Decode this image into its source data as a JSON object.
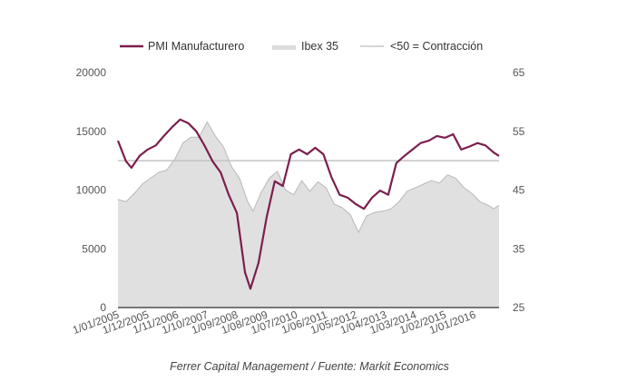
{
  "chart_data": {
    "type": "line",
    "title": "",
    "source": "Ferrer Capital Management / Fuente: Markit Economics",
    "legend": {
      "placement": "top",
      "entries": [
        "PMI Manufacturero",
        "Ibex 35",
        "<50 = Contracción"
      ]
    },
    "left_axis": {
      "ylim": [
        0,
        20000
      ],
      "ticks": [
        "20000",
        "15000",
        "10000",
        "5000",
        "0"
      ],
      "tick_values": [
        20000,
        15000,
        10000,
        5000,
        0
      ]
    },
    "right_axis": {
      "ylim": [
        25,
        65
      ],
      "ticks": [
        "65",
        "55",
        "45",
        "35",
        "25"
      ],
      "tick_values": [
        65,
        55,
        45,
        35,
        25
      ]
    },
    "x_tick_labels": [
      "1/01/2005",
      "1/12/2005",
      "1/11/2006",
      "1/10/2007",
      "1/09/2008",
      "1/08/2009",
      "1/07/2010",
      "1/06/2011",
      "1/05/2012",
      "1/04/2013",
      "1/03/2014",
      "1/02/2015",
      "1/01/2016"
    ],
    "x_tick_months": [
      0,
      11,
      22,
      33,
      44,
      55,
      66,
      77,
      88,
      99,
      110,
      121,
      132
    ],
    "x_range_months": [
      0,
      141
    ],
    "threshold": 50,
    "series": [
      {
        "name": "PMI Manufacturero",
        "axis": "right",
        "color": "#7b1f4e",
        "months": [
          0,
          3,
          5,
          8,
          11,
          14,
          17,
          20,
          23,
          26,
          29,
          32,
          35,
          38,
          41,
          44,
          47,
          49,
          52,
          55,
          58,
          61,
          64,
          67,
          70,
          73,
          76,
          79,
          82,
          85,
          88,
          91,
          94,
          97,
          100,
          103,
          106,
          109,
          112,
          115,
          118,
          121,
          124,
          127,
          130,
          133,
          136,
          139,
          141
        ],
        "values": [
          53.4,
          49.9,
          48.8,
          50.8,
          51.9,
          52.6,
          54.2,
          55.7,
          57.0,
          56.4,
          55.0,
          52.6,
          49.9,
          48.0,
          44.2,
          41.1,
          31.0,
          28.2,
          32.6,
          40.3,
          46.5,
          45.7,
          51.1,
          51.9,
          51.1,
          52.2,
          51.1,
          47.2,
          44.2,
          43.7,
          42.6,
          41.8,
          43.7,
          44.9,
          44.2,
          49.6,
          50.8,
          51.9,
          53.0,
          53.4,
          54.2,
          53.9,
          54.5,
          51.9,
          52.4,
          53.0,
          52.6,
          51.4,
          50.8
        ]
      },
      {
        "name": "Ibex 35",
        "axis": "left",
        "color": "#e0e0e0",
        "months": [
          0,
          3,
          6,
          9,
          12,
          15,
          18,
          21,
          24,
          27,
          30,
          33,
          36,
          39,
          42,
          45,
          48,
          50,
          53,
          56,
          59,
          62,
          65,
          68,
          71,
          74,
          77,
          80,
          83,
          86,
          89,
          92,
          95,
          98,
          101,
          104,
          107,
          110,
          113,
          116,
          119,
          122,
          125,
          128,
          131,
          134,
          137,
          139,
          141
        ],
        "values": [
          9200,
          9000,
          9700,
          10500,
          11000,
          11500,
          11700,
          12600,
          14000,
          14500,
          14500,
          15800,
          14600,
          13700,
          12000,
          11000,
          9000,
          8200,
          9800,
          11000,
          11600,
          10000,
          9600,
          10800,
          9900,
          10700,
          10200,
          8800,
          8500,
          7900,
          6400,
          7800,
          8100,
          8200,
          8400,
          9000,
          9900,
          10200,
          10500,
          10800,
          10600,
          11300,
          11000,
          10200,
          9700,
          9000,
          8700,
          8400,
          8700
        ]
      }
    ]
  }
}
